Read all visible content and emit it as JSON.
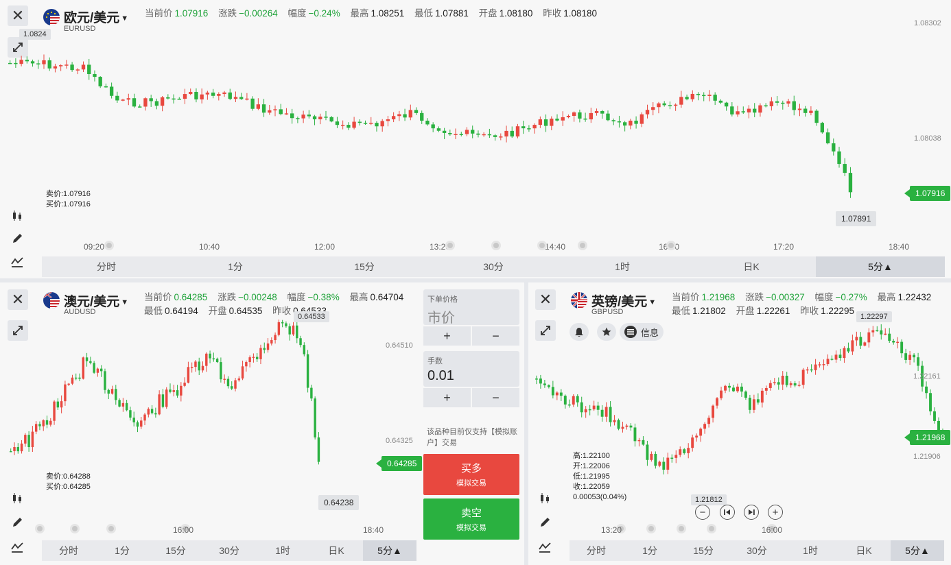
{
  "panels": [
    {
      "title": "欧元/美元",
      "code": "EURUSD",
      "labels": {
        "price": "当前价",
        "chg": "涨跌",
        "pct": "幅度",
        "high": "最高",
        "low": "最低",
        "open": "开盘",
        "prev": "昨收"
      },
      "price": "1.07916",
      "chg": "−0.00264",
      "pct": "−0.24%",
      "high": "1.08251",
      "low": "1.07881",
      "open": "1.08180",
      "prev": "1.08180",
      "crosshair_label": "1.0824",
      "yaxis": [
        "1.08302",
        "1.08038"
      ],
      "last_price_tag": "1.07916",
      "min_tag": "1.07891",
      "bid": "卖价:1.07916",
      "ask": "买价:1.07916",
      "xaxis": [
        "09:20",
        "10:40",
        "12:00",
        "13:20",
        "14:40",
        "16:00",
        "17:20",
        "18:40"
      ],
      "timeframes": [
        "分时",
        "1分",
        "15分",
        "30分",
        "1时",
        "日K",
        "5分▲"
      ],
      "active_tf": 6
    },
    {
      "title": "澳元/美元",
      "code": "AUDUSD",
      "labels": {
        "price": "当前价",
        "chg": "涨跌",
        "pct": "幅度",
        "high": "最高",
        "low": "最低",
        "open": "开盘",
        "prev": "昨收"
      },
      "price": "0.64285",
      "chg": "−0.00248",
      "pct": "−0.38%",
      "high": "0.64704",
      "low": "0.64194",
      "open": "0.64535",
      "prev": "0.64533",
      "max_tag": "0.64533",
      "yaxis": [
        "0.64510",
        "0.64325"
      ],
      "last_price_tag": "0.64285",
      "min_tag": "0.64238",
      "bid": "卖价:0.64288",
      "ask": "买价:0.64285",
      "xaxis": [
        "16:00",
        "18:40"
      ],
      "timeframes": [
        "分时",
        "1分",
        "15分",
        "30分",
        "1时",
        "日K",
        "5分▲"
      ],
      "active_tf": 6
    },
    {
      "title": "英镑/美元",
      "code": "GBPUSD",
      "labels": {
        "price": "当前价",
        "chg": "涨跌",
        "pct": "幅度",
        "high": "最高",
        "low": "最低",
        "open": "开盘",
        "prev": "昨收"
      },
      "price": "1.21968",
      "chg": "−0.00327",
      "pct": "−0.27%",
      "high": "1.22432",
      "low": "1.21802",
      "open": "1.22261",
      "prev": "1.22295",
      "max_tag": "1.22297",
      "yaxis": [
        "1.22161",
        "1.21906"
      ],
      "last_price_tag": "1.21968",
      "min_tag": "1.21812",
      "info_label": "信息",
      "ohlc": [
        "高:1.22100",
        "开:1.22006",
        "低:1.21995",
        "收:1.22059",
        "0.00053(0.04%)"
      ],
      "xaxis": [
        "13:20",
        "16:00"
      ],
      "timeframes": [
        "分时",
        "1分",
        "15分",
        "30分",
        "1时",
        "日K",
        "5分▲"
      ],
      "active_tf": 6
    }
  ],
  "order": {
    "price_label": "下单价格",
    "price_value": "市价",
    "lots_label": "手数",
    "lots_value": "0.01",
    "plus": "+",
    "minus": "−",
    "notice": "该品种目前仅支持【模拟账户】交易",
    "buy": "买多",
    "buy_sub": "模拟交易",
    "sell": "卖空",
    "sell_sub": "模拟交易",
    "buy_color": "#e8483f",
    "sell_color": "#2ab140"
  },
  "colors": {
    "up": "#e8483f",
    "down": "#2ab140"
  }
}
